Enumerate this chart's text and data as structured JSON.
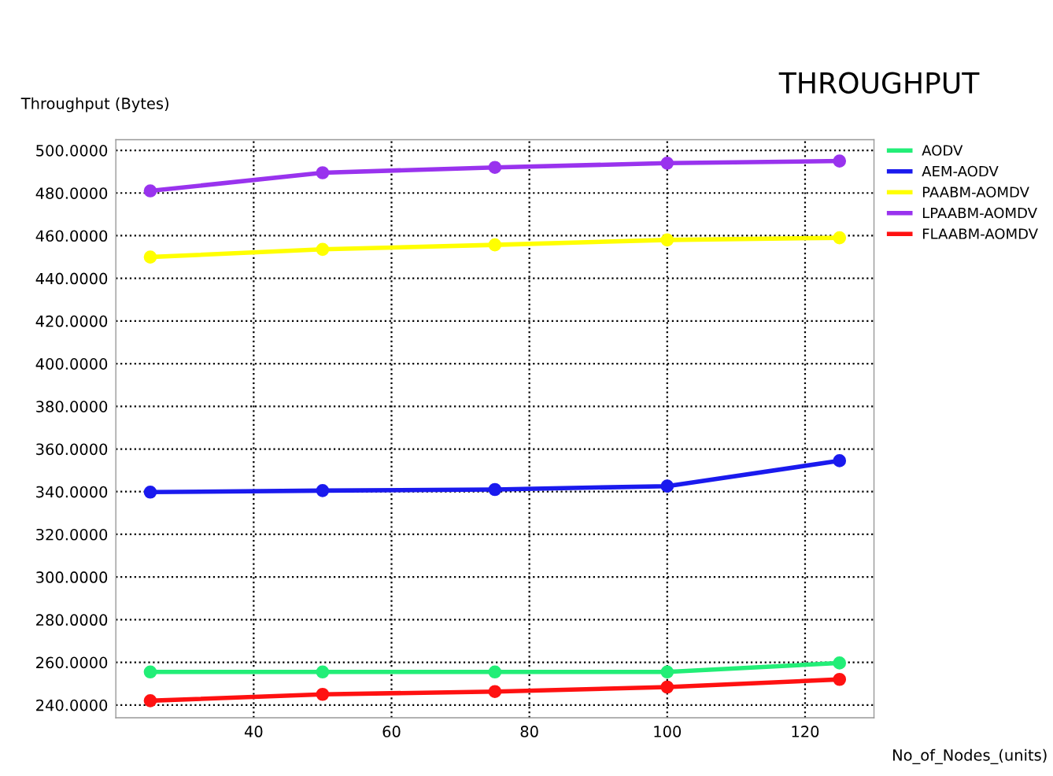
{
  "chart_data": {
    "type": "line",
    "title": "THROUGHPUT",
    "ylabel": "Throughput (Bytes)",
    "xlabel": "No_of_Nodes_(units)",
    "x": [
      25,
      50,
      75,
      100,
      125
    ],
    "series": [
      {
        "name": "AODV",
        "color": "#22ee77",
        "values": [
          255.5,
          255.5,
          255.5,
          255.5,
          259.7
        ]
      },
      {
        "name": "AEM-AODV",
        "color": "#1a1aee",
        "values": [
          339.8,
          340.5,
          341,
          342.6,
          354.5
        ]
      },
      {
        "name": "PAABM-AOMDV",
        "color": "#ffff00",
        "values": [
          450,
          453.6,
          455.7,
          458,
          459
        ]
      },
      {
        "name": "LPAABM-AOMDV",
        "color": "#9933ee",
        "values": [
          481,
          489.5,
          492,
          494,
          495
        ]
      },
      {
        "name": "FLAABM-AOMDV",
        "color": "#ff1111",
        "values": [
          242,
          245,
          246.3,
          248.4,
          252
        ]
      }
    ],
    "xlim": [
      20,
      130
    ],
    "xticks": [
      40,
      60,
      80,
      100,
      120
    ],
    "ylim": [
      234,
      505
    ],
    "yticks": [
      {
        "value": 240,
        "label": "240.0000"
      },
      {
        "value": 260,
        "label": "260.0000"
      },
      {
        "value": 280,
        "label": "280.0000"
      },
      {
        "value": 300,
        "label": "300.0000"
      },
      {
        "value": 320,
        "label": "320.0000"
      },
      {
        "value": 340,
        "label": "340.0000"
      },
      {
        "value": 360,
        "label": "360.0000"
      },
      {
        "value": 380,
        "label": "380.0000"
      },
      {
        "value": 400,
        "label": "400.0000"
      },
      {
        "value": 420,
        "label": "420.0000"
      },
      {
        "value": 440,
        "label": "440.0000"
      },
      {
        "value": 460,
        "label": "460.0000"
      },
      {
        "value": 480,
        "label": "480.0000"
      },
      {
        "value": 500,
        "label": "500.0000"
      }
    ],
    "grid": true,
    "legend": "top right",
    "marker": "circle",
    "line_style": "solid"
  }
}
